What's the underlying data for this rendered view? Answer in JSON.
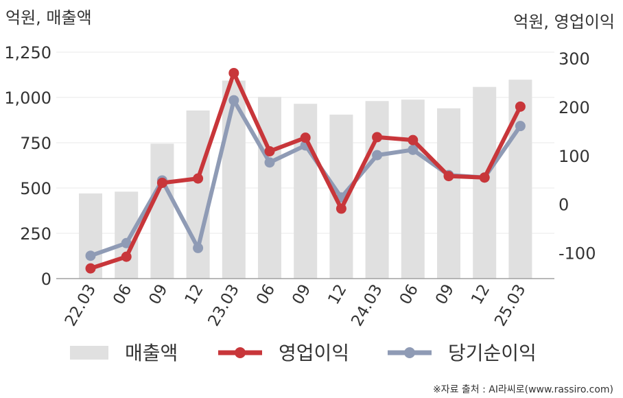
{
  "chart_data": {
    "type": "bar",
    "left_axis_title": "억원, 매출액",
    "right_axis_title": "억원, 영업이익",
    "categories": [
      "22.03",
      "06",
      "09",
      "12",
      "23.03",
      "06",
      "09",
      "12",
      "24.03",
      "06",
      "09",
      "12",
      "25.03"
    ],
    "left_axis": {
      "ylim": [
        0,
        1250
      ],
      "ticks": [
        0,
        250,
        500,
        750,
        "1,000",
        "1,250"
      ]
    },
    "right_axis": {
      "ylim": [
        -153,
        313
      ],
      "ticks": [
        -100,
        0,
        100,
        200,
        300
      ]
    },
    "grid": true,
    "legend_position": "bottom",
    "series": [
      {
        "name": "매출액",
        "type": "bar",
        "axis": "left",
        "color": "#e0e0e0",
        "values": [
          470,
          480,
          745,
          928,
          1093,
          1003,
          965,
          905,
          980,
          988,
          940,
          1058,
          1098
        ]
      },
      {
        "name": "영업이익",
        "type": "line",
        "axis": "right",
        "color": "#c8363a",
        "values": [
          -132,
          -108,
          44,
          53,
          270,
          109,
          137,
          -9,
          138,
          132,
          58,
          55,
          201
        ]
      },
      {
        "name": "당기순이익",
        "type": "line",
        "axis": "right",
        "color": "#8f9bb5",
        "values": [
          -106,
          -80,
          49,
          -90,
          214,
          86,
          121,
          14,
          101,
          112,
          60,
          55,
          161
        ]
      }
    ],
    "source": "※자료 출처 : AI라씨로(www.rassiro.com)"
  }
}
